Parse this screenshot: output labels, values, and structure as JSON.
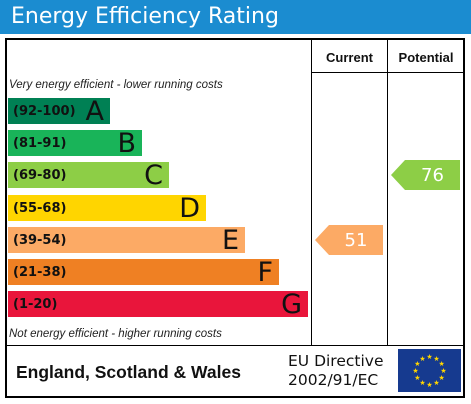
{
  "header": {
    "title": "Energy Efficiency Rating"
  },
  "columns": {
    "current": "Current",
    "potential": "Potential"
  },
  "notes": {
    "top": "Very energy efficient - lower running costs",
    "bottom": "Not energy efficient - higher running costs"
  },
  "chart_data": {
    "type": "bar",
    "categories": [
      "A",
      "B",
      "C",
      "D",
      "E",
      "F",
      "G"
    ],
    "bands": [
      {
        "letter": "A",
        "range": "(92-100)",
        "color": "#008054"
      },
      {
        "letter": "B",
        "range": "(81-91)",
        "color": "#19b459"
      },
      {
        "letter": "C",
        "range": "(69-80)",
        "color": "#8dce46"
      },
      {
        "letter": "D",
        "range": "(55-68)",
        "color": "#ffd500"
      },
      {
        "letter": "E",
        "range": "(39-54)",
        "color": "#fcaa65"
      },
      {
        "letter": "F",
        "range": "(21-38)",
        "color": "#ef8023"
      },
      {
        "letter": "G",
        "range": "(1-20)",
        "color": "#e9153b"
      }
    ],
    "current": {
      "value": 51,
      "band": "E",
      "color": "#fcaa65"
    },
    "potential": {
      "value": 76,
      "band": "C",
      "color": "#8dce46"
    }
  },
  "footer": {
    "region": "England, Scotland & Wales",
    "directive_line1": "EU Directive",
    "directive_line2": "2002/91/EC"
  }
}
